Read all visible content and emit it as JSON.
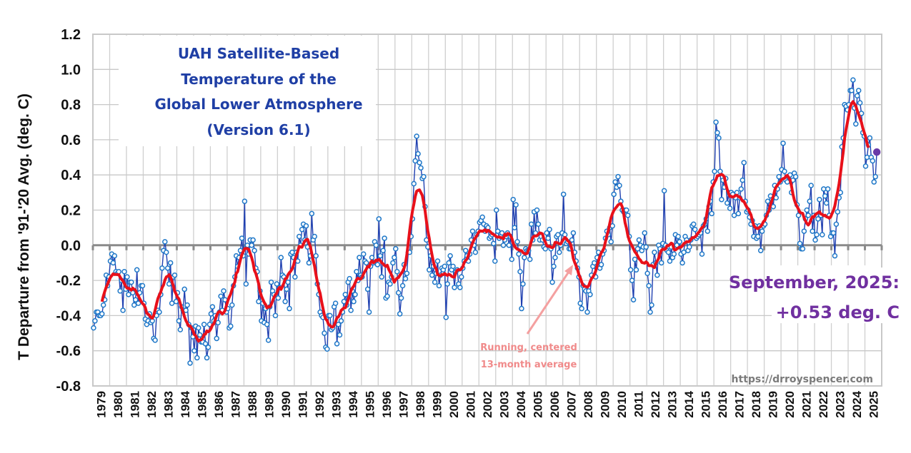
{
  "chart_data": {
    "type": "line",
    "title_lines": [
      "UAH Satellite-Based",
      "Temperature of the",
      "Global Lower Atmosphere",
      "(Version 6.1)"
    ],
    "ylabel": "T Departure from '91-'20 Avg. (deg. C)",
    "xlabel": "",
    "ylim": [
      -0.8,
      1.2
    ],
    "yticks": [
      "1.2",
      "1.0",
      "0.8",
      "0.6",
      "0.4",
      "0.2",
      "0.0",
      "-0.2",
      "-0.4",
      "-0.6",
      "-0.8"
    ],
    "xticks": [
      "1979",
      "1980",
      "1981",
      "1982",
      "1983",
      "1984",
      "1985",
      "1986",
      "1987",
      "1988",
      "1989",
      "1990",
      "1991",
      "1992",
      "1993",
      "1994",
      "1995",
      "1996",
      "1997",
      "1998",
      "1999",
      "2000",
      "2001",
      "2002",
      "2003",
      "2004",
      "2005",
      "2006",
      "2007",
      "2008",
      "2009",
      "2010",
      "2011",
      "2012",
      "2013",
      "2014",
      "2015",
      "2016",
      "2017",
      "2018",
      "2019",
      "2020",
      "2021",
      "2022",
      "2023",
      "2024",
      "2025"
    ],
    "grid": true,
    "start_year": 1979,
    "monthly": {
      "1979": [
        -0.47,
        -0.43,
        -0.38,
        -0.38,
        -0.4,
        -0.4,
        -0.39,
        -0.34,
        -0.31,
        -0.17,
        -0.23,
        -0.18
      ],
      "1980": [
        -0.09,
        -0.05,
        -0.1,
        -0.06,
        -0.15,
        -0.16,
        -0.15,
        -0.26,
        -0.2,
        -0.37,
        -0.15,
        -0.25
      ],
      "1981": [
        -0.18,
        -0.28,
        -0.21,
        -0.21,
        -0.27,
        -0.34,
        -0.31,
        -0.14,
        -0.33,
        -0.27,
        -0.23,
        -0.23
      ],
      "1982": [
        -0.33,
        -0.42,
        -0.45,
        -0.43,
        -0.39,
        -0.44,
        -0.43,
        -0.53,
        -0.54,
        -0.4,
        -0.37,
        -0.38
      ],
      "1983": [
        -0.28,
        -0.13,
        -0.03,
        0.02,
        -0.04,
        -0.13,
        -0.22,
        -0.1,
        -0.33,
        -0.18,
        -0.17,
        -0.32
      ],
      "1984": [
        -0.27,
        -0.43,
        -0.48,
        -0.35,
        -0.37,
        -0.25,
        -0.37,
        -0.34,
        -0.45,
        -0.67,
        -0.47,
        -0.52
      ],
      "1985": [
        -0.6,
        -0.46,
        -0.64,
        -0.47,
        -0.51,
        -0.55,
        -0.55,
        -0.45,
        -0.56,
        -0.64,
        -0.58,
        -0.45
      ],
      "1986": [
        -0.39,
        -0.35,
        -0.43,
        -0.4,
        -0.53,
        -0.44,
        -0.38,
        -0.29,
        -0.37,
        -0.26,
        -0.31,
        -0.38
      ],
      "1987": [
        -0.36,
        -0.47,
        -0.46,
        -0.34,
        -0.23,
        -0.18,
        -0.06,
        -0.12,
        -0.07,
        -0.03,
        0.04,
        -0.06
      ],
      "1988": [
        0.25,
        -0.22,
        0.0,
        -0.05,
        0.03,
        0.0,
        0.03,
        -0.03,
        -0.13,
        -0.15,
        -0.32,
        -0.26
      ],
      "1989": [
        -0.43,
        -0.33,
        -0.44,
        -0.36,
        -0.45,
        -0.54,
        -0.35,
        -0.21,
        -0.26,
        -0.28,
        -0.4,
        -0.22
      ],
      "1990": [
        -0.3,
        -0.24,
        -0.07,
        -0.17,
        -0.18,
        -0.32,
        -0.25,
        -0.21,
        -0.36,
        -0.05,
        -0.04,
        -0.07
      ],
      "1991": [
        -0.18,
        -0.04,
        -0.09,
        0.05,
        0.0,
        0.09,
        0.12,
        0.03,
        0.11,
        -0.01,
        -0.1,
        -0.06
      ],
      "1992": [
        0.18,
        0.03,
        0.05,
        -0.06,
        -0.22,
        -0.28,
        -0.38,
        -0.4,
        -0.41,
        -0.5,
        -0.58,
        -0.59
      ],
      "1993": [
        -0.4,
        -0.4,
        -0.48,
        -0.47,
        -0.35,
        -0.33,
        -0.56,
        -0.45,
        -0.51,
        -0.43,
        -0.38,
        -0.32
      ],
      "1994": [
        -0.28,
        -0.34,
        -0.21,
        -0.19,
        -0.37,
        -0.26,
        -0.32,
        -0.28,
        -0.15,
        -0.2,
        -0.07,
        -0.17
      ],
      "1995": [
        -0.18,
        -0.05,
        -0.09,
        -0.1,
        -0.25,
        -0.38,
        -0.12,
        -0.07,
        -0.1,
        0.02,
        0.0,
        -0.11
      ],
      "1996": [
        0.15,
        -0.06,
        -0.18,
        -0.03,
        0.04,
        -0.3,
        -0.29,
        -0.21,
        -0.22,
        -0.18,
        -0.1,
        -0.07
      ],
      "1997": [
        -0.02,
        -0.15,
        -0.27,
        -0.39,
        -0.3,
        -0.23,
        -0.11,
        -0.19,
        -0.16,
        -0.04,
        -0.04,
        0.05
      ],
      "1998": [
        0.15,
        0.35,
        0.48,
        0.62,
        0.52,
        0.47,
        0.44,
        0.38,
        0.39,
        0.22,
        0.03,
        -0.01
      ],
      "1999": [
        -0.14,
        -0.06,
        -0.17,
        -0.12,
        -0.21,
        -0.16,
        -0.09,
        -0.23,
        -0.17,
        -0.13,
        -0.14,
        -0.12
      ],
      "2000": [
        -0.41,
        -0.22,
        -0.1,
        -0.06,
        -0.14,
        -0.12,
        -0.24,
        -0.15,
        -0.14,
        -0.22,
        -0.24,
        -0.18
      ],
      "2001": [
        -0.13,
        -0.09,
        -0.03,
        -0.06,
        -0.09,
        -0.05,
        0.03,
        0.08,
        0.0,
        -0.04,
        0.06,
        0.08
      ],
      "2002": [
        0.13,
        0.14,
        0.16,
        0.12,
        0.08,
        0.11,
        0.1,
        0.04,
        0.05,
        0.06,
        0.01,
        -0.09
      ],
      "2003": [
        0.2,
        0.08,
        0.04,
        0.05,
        0.07,
        0.0,
        0.03,
        0.05,
        0.07,
        0.0,
        0.05,
        -0.08
      ],
      "2004": [
        0.26,
        0.1,
        0.23,
        0.02,
        -0.05,
        -0.15,
        -0.36,
        -0.22,
        -0.07,
        -0.02,
        -0.03,
        -0.03
      ],
      "2005": [
        -0.08,
        0.12,
        0.03,
        0.19,
        0.07,
        0.2,
        0.12,
        0.03,
        0.05,
        0.03,
        -0.01,
        -0.02
      ],
      "2006": [
        0.07,
        0.04,
        0.09,
        -0.02,
        -0.21,
        -0.12,
        -0.07,
        0.05,
        0.06,
        -0.04,
        0.0,
        0.07
      ],
      "2007": [
        0.29,
        0.06,
        0.01,
        0.02,
        -0.02,
        -0.02,
        0.03,
        0.07,
        -0.04,
        -0.09,
        -0.13,
        -0.18
      ],
      "2008": [
        -0.33,
        -0.36,
        -0.23,
        -0.25,
        -0.26,
        -0.38,
        -0.26,
        -0.28,
        -0.17,
        -0.12,
        -0.1,
        -0.18
      ],
      "2009": [
        -0.07,
        -0.04,
        -0.13,
        -0.11,
        -0.05,
        -0.03,
        0.04,
        0.08,
        0.06,
        0.1,
        0.02,
        0.11
      ],
      "2010": [
        0.29,
        0.36,
        0.33,
        0.39,
        0.34,
        0.25,
        0.2,
        0.19,
        0.2,
        0.2,
        0.17,
        0.05
      ],
      "2011": [
        -0.14,
        -0.2,
        -0.31,
        -0.08,
        -0.14,
        -0.02,
        0.03,
        0.0,
        -0.03,
        -0.01,
        0.07,
        -0.01
      ],
      "2012": [
        -0.16,
        -0.23,
        -0.38,
        -0.34,
        -0.11,
        -0.04,
        -0.1,
        -0.17,
        0.0,
        -0.02,
        -0.1,
        0.01
      ],
      "2013": [
        0.31,
        0.0,
        -0.03,
        -0.04,
        -0.09,
        -0.01,
        -0.07,
        -0.05,
        0.06,
        0.0,
        0.05,
        0.02
      ],
      "2014": [
        -0.05,
        -0.1,
        -0.04,
        0.05,
        0.03,
        -0.03,
        -0.01,
        0.03,
        0.11,
        0.12,
        0.09,
        0.04
      ],
      "2015": [
        0.05,
        0.06,
        0.07,
        -0.05,
        0.11,
        0.12,
        0.15,
        0.08,
        0.22,
        0.25,
        0.18,
        0.36
      ],
      "2016": [
        0.42,
        0.7,
        0.64,
        0.61,
        0.42,
        0.26,
        0.37,
        0.33,
        0.38,
        0.24,
        0.3,
        0.21
      ],
      "2017": [
        0.3,
        0.29,
        0.17,
        0.27,
        0.3,
        0.18,
        0.27,
        0.32,
        0.37,
        0.47,
        0.25,
        0.19
      ],
      "2018": [
        0.2,
        0.16,
        0.12,
        0.14,
        0.05,
        0.11,
        0.04,
        0.05,
        0.11,
        -0.03,
        0.08,
        0.11
      ],
      "2019": [
        0.12,
        0.17,
        0.25,
        0.2,
        0.28,
        0.26,
        0.22,
        0.34,
        0.27,
        0.32,
        0.39,
        0.36
      ],
      "2020": [
        0.43,
        0.58,
        0.42,
        0.37,
        0.36,
        0.39,
        0.4,
        0.3,
        0.37,
        0.41,
        0.39,
        0.23
      ],
      "2021": [
        0.17,
        0.01,
        -0.02,
        -0.02,
        0.08,
        0.15,
        0.2,
        0.17,
        0.25,
        0.34,
        0.08,
        0.17
      ],
      "2022": [
        0.03,
        0.06,
        0.15,
        0.26,
        0.17,
        0.06,
        0.32,
        0.28,
        0.24,
        0.32,
        0.17,
        0.05
      ],
      "2023": [
        0.07,
        0.07,
        -0.06,
        0.12,
        0.19,
        0.27,
        0.3,
        0.56,
        0.61,
        0.8,
        0.79,
        0.77
      ],
      "2024": [
        0.8,
        0.88,
        0.88,
        0.94,
        0.78,
        0.69,
        0.85,
        0.88,
        0.81,
        0.75,
        0.64,
        0.62
      ],
      "2025": [
        0.45,
        0.5,
        0.57,
        0.61,
        0.5,
        0.48,
        0.36,
        0.39,
        0.53
      ]
    },
    "running_average_months": 13,
    "annotation_running": [
      "Running, centered",
      "13-month average"
    ],
    "latest_label": [
      "September, 2025:",
      "+0.53 deg. C"
    ],
    "latest_value": 0.53,
    "watermark": "https://drroyspencer.com",
    "colors": {
      "monthly_line": "#2040b0",
      "monthly_marker": "#1f78c8",
      "running_average": "#e8101a",
      "latest_marker": "#6a3aa8",
      "title": "#1f3fa5",
      "latest_label": "#7030a0",
      "annotation": "#f08a8a"
    }
  }
}
